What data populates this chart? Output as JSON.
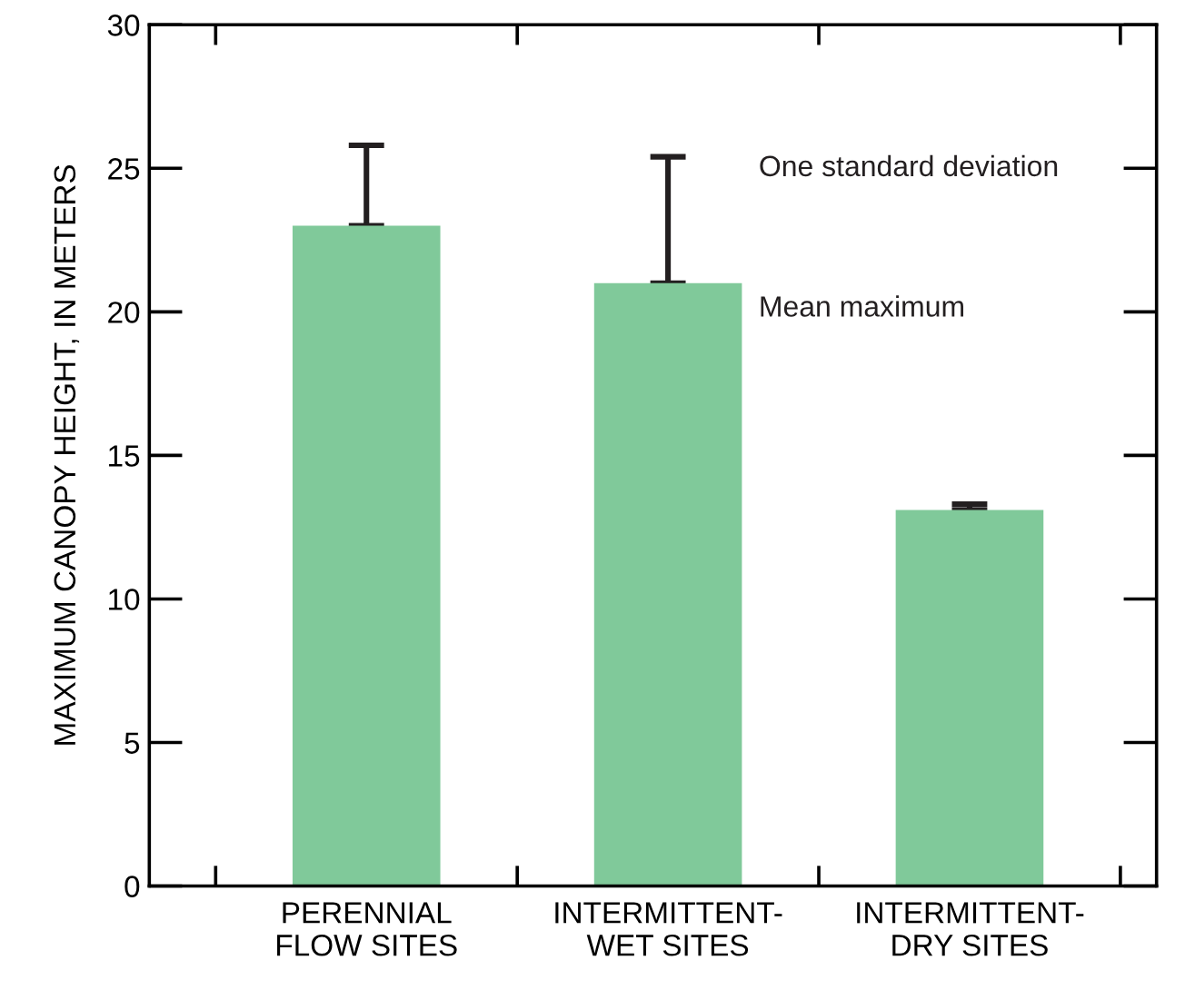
{
  "chart_data": {
    "type": "bar",
    "ylabel": "MAXIMUM CANOPY HEIGHT, IN METERS",
    "categories": [
      "PERENNIAL\nFLOW SITES",
      "INTERMITTENT-\nWET SITES",
      "INTERMITTENT-\nDRY SITES"
    ],
    "values": [
      23.0,
      21.0,
      13.1
    ],
    "errors": [
      [
        23.0,
        25.8
      ],
      [
        21.0,
        25.4
      ],
      [
        13.1,
        13.3
      ]
    ],
    "color": "#80c99a",
    "ylim": [
      0,
      30
    ],
    "yticks": [
      0,
      5,
      10,
      15,
      20,
      25,
      30
    ],
    "annotations": [
      "One standard deviation",
      "Mean maximum"
    ],
    "grid": false,
    "legend": false
  }
}
